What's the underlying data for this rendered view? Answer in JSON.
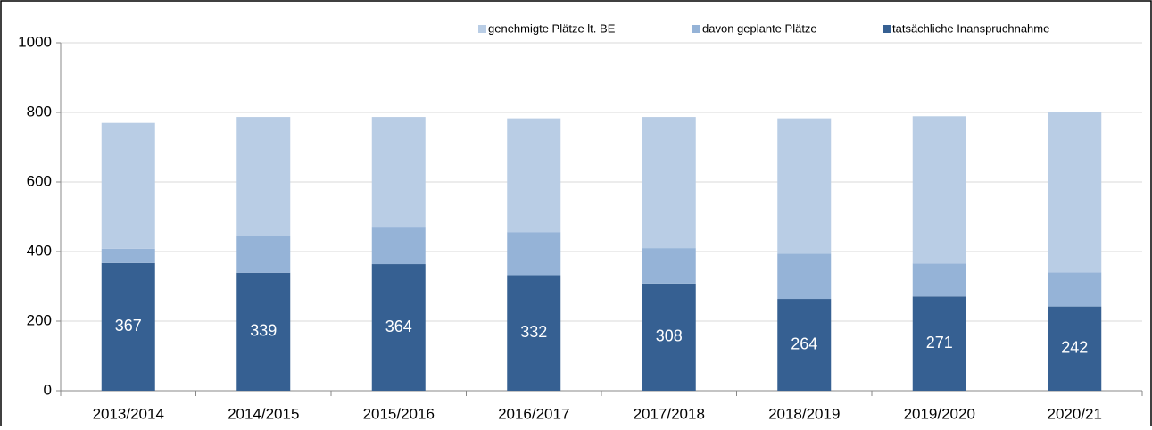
{
  "chart_data": {
    "type": "stacked_bar",
    "categories": [
      "2013/2014",
      "2014/2015",
      "2015/2016",
      "2016/2017",
      "2017/2018",
      "2018/2019",
      "2019/2020",
      "2020/21"
    ],
    "series": [
      {
        "name": "genehmigte Plätze lt. BE",
        "color": "#b9cde5",
        "values": [
          362,
          342,
          318,
          327,
          377,
          389,
          423,
          462
        ]
      },
      {
        "name": "davon geplante Plätze",
        "color": "#95b3d7",
        "values": [
          41,
          106,
          105,
          124,
          102,
          130,
          95,
          98
        ]
      },
      {
        "name": "tatsächliche Inanspruchnahme",
        "color": "#366092",
        "values": [
          367,
          339,
          364,
          332,
          308,
          264,
          271,
          242
        ]
      }
    ],
    "ylim": [
      0,
      1000
    ],
    "yticks": [
      0,
      200,
      400,
      600,
      800,
      1000
    ],
    "grid": true,
    "legend": "top"
  }
}
